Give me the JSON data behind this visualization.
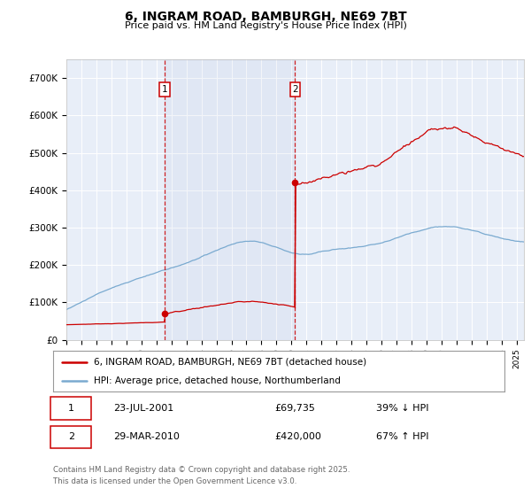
{
  "title": "6, INGRAM ROAD, BAMBURGH, NE69 7BT",
  "subtitle": "Price paid vs. HM Land Registry's House Price Index (HPI)",
  "ylim": [
    0,
    750000
  ],
  "yticks": [
    0,
    100000,
    200000,
    300000,
    400000,
    500000,
    600000,
    700000
  ],
  "ytick_labels": [
    "£0",
    "£100K",
    "£200K",
    "£300K",
    "£400K",
    "£500K",
    "£600K",
    "£700K"
  ],
  "xlim_start": 1995.0,
  "xlim_end": 2025.5,
  "background_color": "#ffffff",
  "plot_bg_color": "#e8eef8",
  "grid_color": "#ffffff",
  "transaction1_year": 2001.55,
  "transaction1_price": 69735,
  "transaction2_year": 2010.24,
  "transaction2_price": 420000,
  "legend_line1": "6, INGRAM ROAD, BAMBURGH, NE69 7BT (detached house)",
  "legend_line2": "HPI: Average price, detached house, Northumberland",
  "footer_line1": "Contains HM Land Registry data © Crown copyright and database right 2025.",
  "footer_line2": "This data is licensed under the Open Government Licence v3.0.",
  "table_row1_num": "1",
  "table_row1_date": "23-JUL-2001",
  "table_row1_price": "£69,735",
  "table_row1_hpi": "39% ↓ HPI",
  "table_row2_num": "2",
  "table_row2_date": "29-MAR-2010",
  "table_row2_price": "£420,000",
  "table_row2_hpi": "67% ↑ HPI",
  "red_color": "#cc0000",
  "blue_color": "#7aaad0"
}
